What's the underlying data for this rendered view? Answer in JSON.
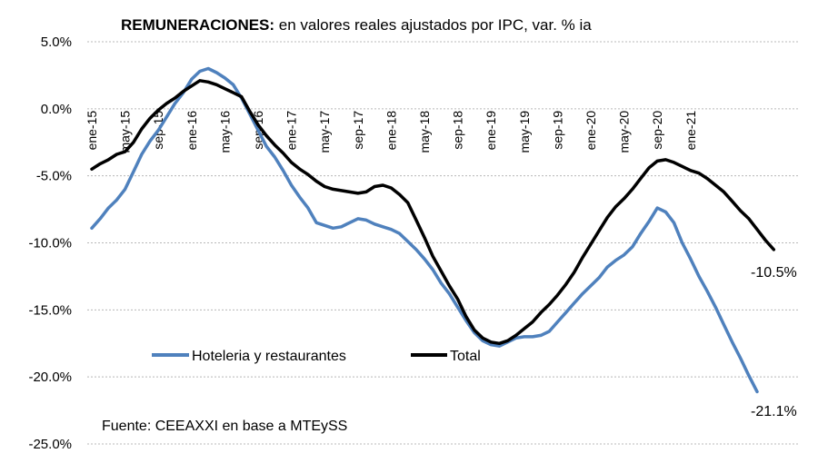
{
  "chart_data": {
    "type": "line",
    "title_bold": "REMUNERACIONES:",
    "title_rest": " en valores reales ajustados por IPC, var. % ia",
    "ylim": [
      -25,
      5
    ],
    "y_ticks": [
      5,
      0,
      -5,
      -10,
      -15,
      -20,
      -25
    ],
    "y_tick_labels": [
      "5.0%",
      "0.0%",
      "-5.0%",
      "-10.0%",
      "-15.0%",
      "-20.0%",
      "-25.0%"
    ],
    "x_start": "2015-01",
    "x_tick_labels": [
      "ene-15",
      "may-15",
      "sep-15",
      "ene-16",
      "may-16",
      "sep-16",
      "ene-17",
      "may-17",
      "sep-17",
      "ene-18",
      "may-18",
      "sep-18",
      "ene-19",
      "may-19",
      "sep-19",
      "ene-20",
      "may-20",
      "sep-20",
      "ene-21"
    ],
    "grid": true,
    "legend_position": "bottom-left",
    "series": [
      {
        "name": "Hoteleria y restaurantes",
        "color": "#4f81bd",
        "values": [
          -8.9,
          -8.2,
          -7.4,
          -6.8,
          -6.0,
          -4.7,
          -3.4,
          -2.4,
          -1.6,
          -0.6,
          0.4,
          1.2,
          2.2,
          2.8,
          3.0,
          2.7,
          2.3,
          1.8,
          0.8,
          -0.4,
          -1.6,
          -2.8,
          -3.6,
          -4.6,
          -5.7,
          -6.6,
          -7.4,
          -8.5,
          -8.7,
          -8.9,
          -8.8,
          -8.5,
          -8.2,
          -8.3,
          -8.6,
          -8.8,
          -9.0,
          -9.3,
          -9.9,
          -10.5,
          -11.2,
          -12.0,
          -13.0,
          -13.8,
          -14.8,
          -15.8,
          -16.7,
          -17.3,
          -17.6,
          -17.7,
          -17.4,
          -17.1,
          -17.0,
          -17.0,
          -16.9,
          -16.6,
          -15.9,
          -15.2,
          -14.5,
          -13.8,
          -13.2,
          -12.6,
          -11.8,
          -11.3,
          -10.9,
          -10.3,
          -9.3,
          -8.4,
          -7.4,
          -7.7,
          -8.5,
          -10.0,
          -11.2,
          -12.5,
          -13.6,
          -14.8,
          -16.1,
          -17.4,
          -18.6,
          -19.9,
          -21.1
        ]
      },
      {
        "name": "Total",
        "color": "#000000",
        "values": [
          -4.5,
          -4.1,
          -3.8,
          -3.4,
          -3.2,
          -2.5,
          -1.5,
          -0.7,
          -0.1,
          0.4,
          0.8,
          1.3,
          1.7,
          2.1,
          2.0,
          1.8,
          1.5,
          1.2,
          0.9,
          -0.2,
          -1.2,
          -2.0,
          -2.7,
          -3.3,
          -4.0,
          -4.5,
          -4.9,
          -5.4,
          -5.8,
          -6.0,
          -6.1,
          -6.2,
          -6.3,
          -6.2,
          -5.8,
          -5.7,
          -5.9,
          -6.4,
          -7.0,
          -8.3,
          -9.6,
          -11.0,
          -12.1,
          -13.2,
          -14.2,
          -15.5,
          -16.5,
          -17.1,
          -17.4,
          -17.5,
          -17.3,
          -16.9,
          -16.4,
          -15.9,
          -15.2,
          -14.6,
          -13.9,
          -13.1,
          -12.2,
          -11.1,
          -10.1,
          -9.1,
          -8.1,
          -7.3,
          -6.7,
          -6.0,
          -5.2,
          -4.4,
          -3.9,
          -3.8,
          -4.0,
          -4.3,
          -4.6,
          -4.8,
          -5.2,
          -5.7,
          -6.2,
          -6.9,
          -7.6,
          -8.2,
          -9.0,
          -9.8,
          -10.5
        ]
      }
    ],
    "end_labels": [
      "-10.5%",
      "-21.1%"
    ],
    "source": "Fuente: CEEAXXI en base a MTEySS"
  }
}
